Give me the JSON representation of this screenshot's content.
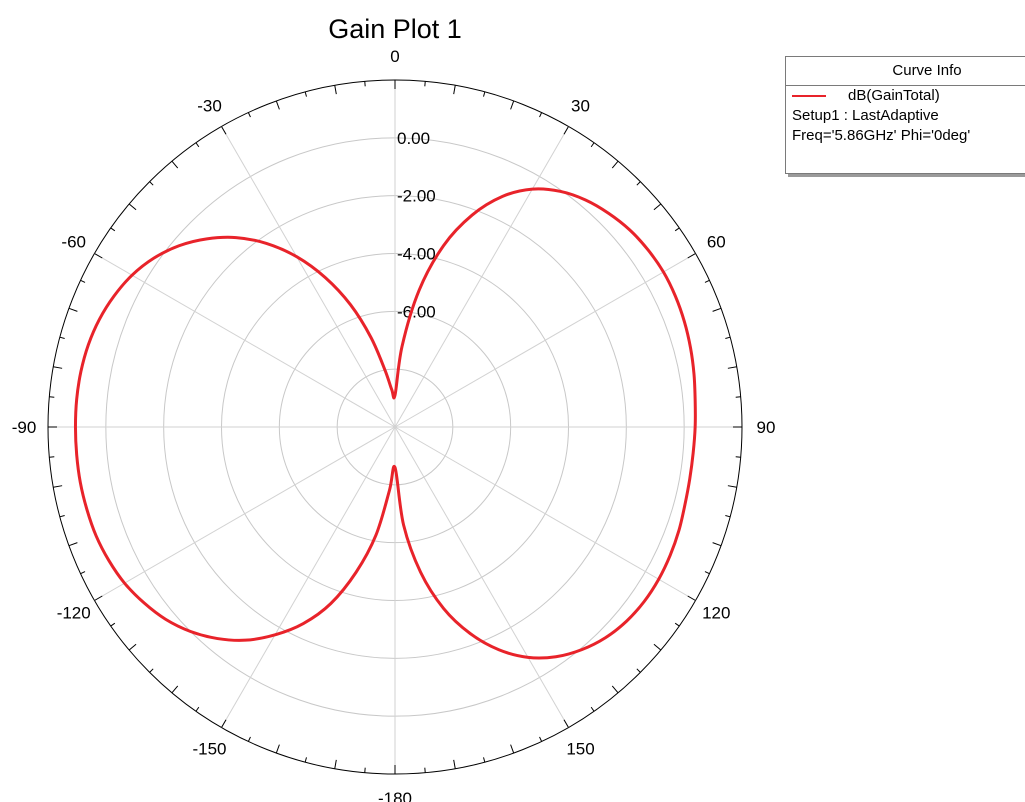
{
  "chart_data": {
    "type": "polar-line",
    "title": "Gain Plot 1",
    "angle_ticks": [
      0,
      30,
      60,
      90,
      120,
      150,
      -180,
      -150,
      -120,
      -90,
      -60,
      -30
    ],
    "radial_tick_labels": [
      "0.00",
      "-2.00",
      "-4.00",
      "-6.00"
    ],
    "radial_range": [
      -10,
      2
    ],
    "grid": true,
    "series": [
      {
        "name": "dB(GainTotal)",
        "color": "#e8232a",
        "points": [
          {
            "theta": 0,
            "r": -8.9
          },
          {
            "theta": 5,
            "r": -7.2
          },
          {
            "theta": 10,
            "r": -5.2
          },
          {
            "theta": 15,
            "r": -3.5
          },
          {
            "theta": 20,
            "r": -2.2
          },
          {
            "theta": 25,
            "r": -1.2
          },
          {
            "theta": 30,
            "r": -0.5
          },
          {
            "theta": 35,
            "r": -0.05
          },
          {
            "theta": 40,
            "r": 0.25
          },
          {
            "theta": 45,
            "r": 0.45
          },
          {
            "theta": 50,
            "r": 0.6
          },
          {
            "theta": 55,
            "r": 0.68
          },
          {
            "theta": 60,
            "r": 0.72
          },
          {
            "theta": 65,
            "r": 0.7
          },
          {
            "theta": 70,
            "r": 0.65
          },
          {
            "theta": 75,
            "r": 0.58
          },
          {
            "theta": 80,
            "r": 0.5
          },
          {
            "theta": 85,
            "r": 0.42
          },
          {
            "theta": 90,
            "r": 0.38
          },
          {
            "theta": 95,
            "r": 0.35
          },
          {
            "theta": 100,
            "r": 0.35
          },
          {
            "theta": 105,
            "r": 0.38
          },
          {
            "theta": 110,
            "r": 0.45
          },
          {
            "theta": 115,
            "r": 0.5
          },
          {
            "theta": 120,
            "r": 0.53
          },
          {
            "theta": 125,
            "r": 0.52
          },
          {
            "theta": 130,
            "r": 0.45
          },
          {
            "theta": 135,
            "r": 0.3
          },
          {
            "theta": 140,
            "r": 0.05
          },
          {
            "theta": 145,
            "r": -0.3
          },
          {
            "theta": 150,
            "r": -0.8
          },
          {
            "theta": 155,
            "r": -1.5
          },
          {
            "theta": 160,
            "r": -2.4
          },
          {
            "theta": 165,
            "r": -3.5
          },
          {
            "theta": 170,
            "r": -4.9
          },
          {
            "theta": 175,
            "r": -6.6
          },
          {
            "theta": 180,
            "r": -8.6
          },
          {
            "theta": -175,
            "r": -7.8
          },
          {
            "theta": -170,
            "r": -6.2
          },
          {
            "theta": -165,
            "r": -4.8
          },
          {
            "theta": -160,
            "r": -3.5
          },
          {
            "theta": -155,
            "r": -2.5
          },
          {
            "theta": -150,
            "r": -1.7
          },
          {
            "theta": -145,
            "r": -1.0
          },
          {
            "theta": -140,
            "r": -0.45
          },
          {
            "theta": -135,
            "r": -0.0
          },
          {
            "theta": -130,
            "r": 0.35
          },
          {
            "theta": -125,
            "r": 0.6
          },
          {
            "theta": -120,
            "r": 0.8
          },
          {
            "theta": -115,
            "r": 0.92
          },
          {
            "theta": -110,
            "r": 1.0
          },
          {
            "theta": -105,
            "r": 1.03
          },
          {
            "theta": -100,
            "r": 1.05
          },
          {
            "theta": -95,
            "r": 1.05
          },
          {
            "theta": -90,
            "r": 1.05
          },
          {
            "theta": -85,
            "r": 1.05
          },
          {
            "theta": -80,
            "r": 1.03
          },
          {
            "theta": -75,
            "r": 0.98
          },
          {
            "theta": -70,
            "r": 0.88
          },
          {
            "theta": -65,
            "r": 0.72
          },
          {
            "theta": -60,
            "r": 0.5
          },
          {
            "theta": -55,
            "r": 0.18
          },
          {
            "theta": -50,
            "r": -0.25
          },
          {
            "theta": -45,
            "r": -0.8
          },
          {
            "theta": -40,
            "r": -1.45
          },
          {
            "theta": -35,
            "r": -2.25
          },
          {
            "theta": -30,
            "r": -3.2
          },
          {
            "theta": -25,
            "r": -4.3
          },
          {
            "theta": -20,
            "r": -5.5
          },
          {
            "theta": -15,
            "r": -6.8
          },
          {
            "theta": -10,
            "r": -8.0
          },
          {
            "theta": -5,
            "r": -8.7
          }
        ]
      }
    ]
  },
  "legend": {
    "header": "Curve Info",
    "series_label": "dB(GainTotal)",
    "line2": "Setup1 : LastAdaptive",
    "line3": "Freq='5.86GHz' Phi='0deg'",
    "color": "#e8232a"
  }
}
